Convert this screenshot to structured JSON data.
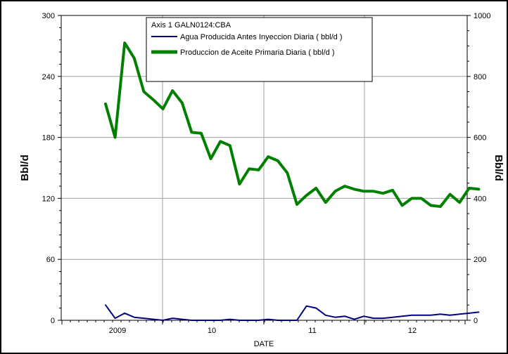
{
  "chart_data": {
    "type": "line",
    "title": "",
    "legend": {
      "header": "Axis 1  GALN0124:CBA",
      "placement": "top-center"
    },
    "xlabel": "DATE",
    "ylabel_left": "Bbl/d",
    "ylabel_right": "Bbl/d",
    "x_ticks": [
      "2009",
      "10",
      "11",
      "12"
    ],
    "y_left": {
      "range": [
        0,
        300
      ],
      "ticks": [
        "0",
        "60",
        "120",
        "180",
        "240",
        "300"
      ]
    },
    "y_right": {
      "range": [
        0,
        1000
      ],
      "ticks": [
        "0",
        "200",
        "400",
        "600",
        "800",
        "1000"
      ]
    },
    "grid": true,
    "x": [
      "2008-12",
      "2009-01",
      "2009-02",
      "2009-03",
      "2009-04",
      "2009-05",
      "2009-06",
      "2009-07",
      "2009-08",
      "2009-09",
      "2009-10",
      "2009-11",
      "2009-12",
      "2010-01",
      "2010-02",
      "2010-03",
      "2010-04",
      "2010-05",
      "2010-06",
      "2010-07",
      "2010-08",
      "2010-09",
      "2010-10",
      "2010-11",
      "2010-12",
      "2011-01",
      "2011-02",
      "2011-03",
      "2011-04",
      "2011-05",
      "2011-06",
      "2011-07",
      "2011-08",
      "2011-09",
      "2011-10",
      "2011-11",
      "2011-12",
      "2012-01",
      "2012-02",
      "2012-03"
    ],
    "series": [
      {
        "name": "Agua Producida Antes Inyeccion Diaria ( bbl/d )",
        "color": "#000080",
        "values": [
          15,
          2,
          7,
          3,
          2,
          1,
          0,
          2,
          1,
          0,
          0,
          0,
          0,
          1,
          0,
          0,
          0,
          1,
          0,
          0,
          0,
          14,
          12,
          5,
          3,
          4,
          1,
          4,
          2,
          2,
          3,
          4,
          5,
          5,
          5,
          6,
          5,
          6,
          7,
          8
        ]
      },
      {
        "name": "Produccion de Aceite Primaria Diaria ( bbl/d )",
        "color": "#008000",
        "values": [
          213,
          180,
          273,
          258,
          225,
          217,
          208,
          226,
          214,
          185,
          184,
          159,
          176,
          172,
          134,
          149,
          148,
          161,
          157,
          145,
          114,
          123,
          130,
          116,
          127,
          132,
          129,
          127,
          127,
          125,
          128,
          113,
          120,
          120,
          113,
          112,
          124,
          116,
          130,
          129
        ]
      }
    ]
  }
}
